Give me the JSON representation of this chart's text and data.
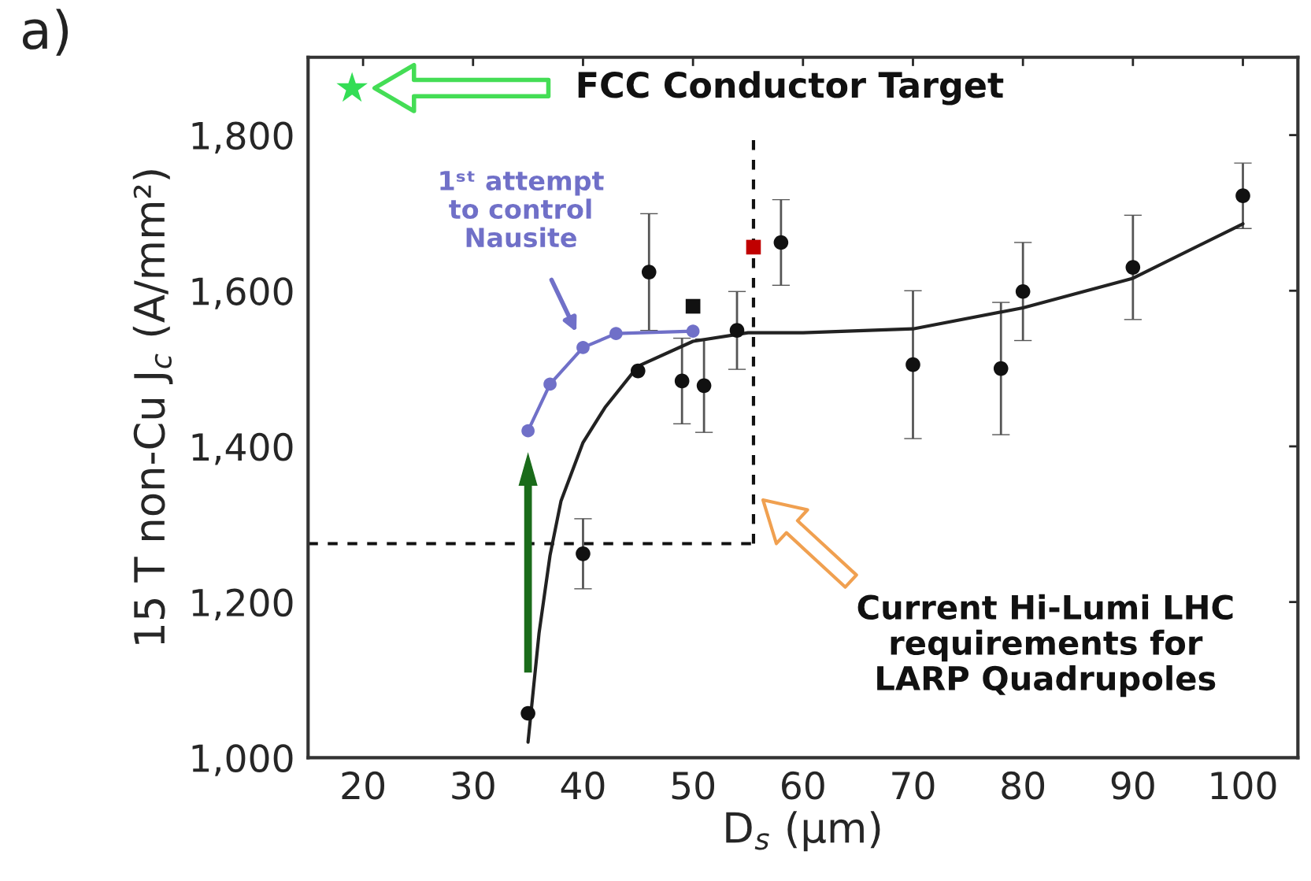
{
  "chart_data": {
    "type": "scatter",
    "xlabel": "D$_{s}$ (μm)",
    "ylabel": "15 T non-Cu J$_{c}$ (A/mm²)",
    "xlim": [
      15,
      105
    ],
    "ylim": [
      1000,
      1900
    ],
    "xticks": [
      20,
      30,
      40,
      50,
      60,
      70,
      80,
      90,
      100
    ],
    "yticks": [
      {
        "value": 1000,
        "label": "1,000"
      },
      {
        "value": 1200,
        "label": "1,200"
      },
      {
        "value": 1400,
        "label": "1,400"
      },
      {
        "value": 1600,
        "label": "1,600"
      },
      {
        "value": 1800,
        "label": "1,800"
      }
    ],
    "grid": false,
    "legend": false,
    "series": [
      {
        "type": "line",
        "color": "#222222",
        "marker": "none",
        "x": [
          35,
          36,
          37,
          38,
          40,
          42,
          45,
          50,
          55,
          60,
          70,
          80,
          90,
          100
        ],
        "values": [
          1020,
          1160,
          1260,
          1330,
          1405,
          1450,
          1503,
          1535,
          1546,
          1546,
          1551,
          1578,
          1616,
          1686
        ]
      },
      {
        "type": "line",
        "color": "#7070c8",
        "marker": "circle",
        "x": [
          35,
          37,
          40,
          43,
          50
        ],
        "values": [
          1420,
          1480,
          1527,
          1545,
          1548
        ]
      },
      {
        "color": "#111111",
        "marker": "circle",
        "x": [
          35,
          40,
          45,
          46,
          49,
          51,
          54,
          58,
          70,
          78,
          80,
          90,
          100
        ],
        "values": [
          1057,
          1262,
          1497,
          1624,
          1484,
          1478,
          1549,
          1662,
          1505,
          1500,
          1599,
          1630,
          1722
        ],
        "errors": [
          null,
          45,
          null,
          75,
          55,
          60,
          50,
          55,
          95,
          85,
          63,
          67,
          42
        ]
      },
      {
        "color": "#111111",
        "marker": "square",
        "x": [
          50
        ],
        "values": [
          1580
        ]
      },
      {
        "color": "#c00000",
        "marker": "square",
        "x": [
          55.5
        ],
        "values": [
          1656
        ]
      },
      {
        "color": "#33dd55",
        "marker": "star",
        "x": [
          19
        ],
        "values": [
          1860
        ]
      }
    ],
    "ref_lines": [
      {
        "axis": "y",
        "value": 1275,
        "color": "#111111",
        "line_style": "dashed"
      },
      {
        "axis": "x",
        "value": 55.5,
        "color": "#111111",
        "line_style": "dashed"
      }
    ],
    "annotations": [
      "a)",
      "FCC Conductor Target",
      "1ˢᵗ attempt\nto control\nNausite",
      "Current Hi-Lumi LHC\nrequirements for\nLARP Quadrupoles"
    ]
  }
}
